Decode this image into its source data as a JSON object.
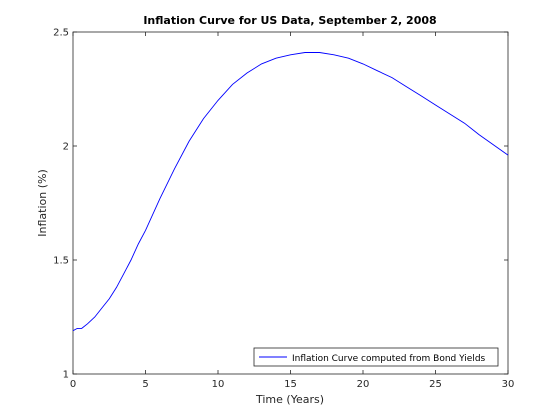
{
  "chart_data": {
    "type": "line",
    "title": "Inflation Curve for US Data, September 2, 2008",
    "xlabel": "Time (Years)",
    "ylabel": "Inflation (%)",
    "xlim": [
      0,
      30
    ],
    "ylim": [
      1,
      2.5
    ],
    "xticks": [
      0,
      5,
      10,
      15,
      20,
      25,
      30
    ],
    "yticks": [
      1,
      1.5,
      2,
      2.5
    ],
    "xtick_labels": [
      "0",
      "5",
      "10",
      "15",
      "20",
      "25",
      "30"
    ],
    "ytick_labels": [
      "1",
      "1.5",
      "2",
      "2.5"
    ],
    "grid": false,
    "legend_position": "bottom-right",
    "series": [
      {
        "name": "Inflation Curve computed from Bond Yields",
        "color": "#0000ff",
        "x": [
          0,
          0.3,
          0.6,
          1,
          1.5,
          2,
          2.5,
          3,
          3.5,
          4,
          4.5,
          5,
          6,
          7,
          8,
          9,
          10,
          11,
          12,
          13,
          14,
          15,
          16,
          17,
          18,
          19,
          20,
          21,
          22,
          23,
          24,
          25,
          26,
          27,
          28,
          29,
          30
        ],
        "y": [
          1.19,
          1.2,
          1.2,
          1.22,
          1.25,
          1.29,
          1.33,
          1.38,
          1.44,
          1.5,
          1.57,
          1.63,
          1.77,
          1.9,
          2.02,
          2.12,
          2.2,
          2.27,
          2.32,
          2.36,
          2.385,
          2.4,
          2.41,
          2.41,
          2.4,
          2.385,
          2.36,
          2.33,
          2.3,
          2.26,
          2.22,
          2.18,
          2.14,
          2.1,
          2.05,
          2.005,
          1.96
        ]
      }
    ]
  }
}
